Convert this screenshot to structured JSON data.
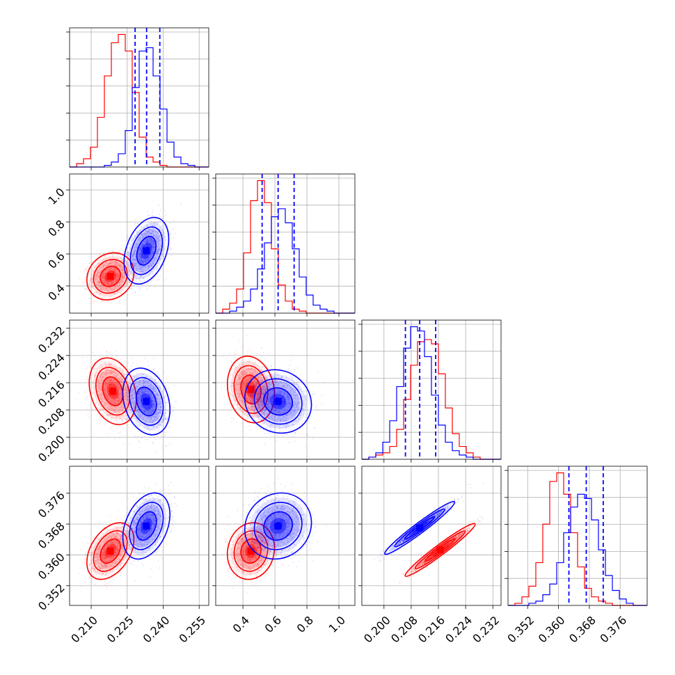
{
  "chart_data": {
    "type": "corner",
    "parameters": 4,
    "colors": {
      "red": "#ff0000",
      "blue": "#0000ff"
    },
    "grid": true,
    "quantile_lines": {
      "color": "#0000ff",
      "style": "dashed",
      "series": "blue"
    },
    "axes": [
      {
        "range": [
          0.201,
          0.259
        ],
        "ticks": [
          0.21,
          0.225,
          0.24,
          0.255
        ],
        "tick_labels": [
          "0.210",
          "0.225",
          "0.240",
          "0.255"
        ]
      },
      {
        "range": [
          0.23,
          1.1
        ],
        "ticks": [
          0.4,
          0.6,
          0.8,
          1.0
        ],
        "tick_labels": [
          "0.4",
          "0.6",
          "0.8",
          "1.0"
        ]
      },
      {
        "range": [
          0.1935,
          0.2344
        ],
        "ticks": [
          0.2,
          0.208,
          0.216,
          0.224,
          0.232
        ],
        "tick_labels": [
          "0.200",
          "0.208",
          "0.216",
          "0.224",
          "0.232"
        ]
      },
      {
        "range": [
          0.3469,
          0.383
        ],
        "ticks": [
          0.352,
          0.36,
          0.368,
          0.376
        ],
        "tick_labels": [
          "0.352",
          "0.360",
          "0.368",
          "0.376"
        ]
      }
    ],
    "marginals": [
      {
        "param": 0,
        "bins": [
          0.201,
          0.259
        ],
        "red": [
          0,
          2,
          5,
          12,
          30,
          55,
          75,
          80,
          70,
          45,
          18,
          6,
          3,
          1,
          0,
          0,
          0,
          0,
          0,
          0
        ],
        "blue": [
          0,
          0,
          0,
          0,
          0,
          1,
          3,
          8,
          22,
          48,
          70,
          72,
          55,
          35,
          15,
          6,
          2,
          1,
          0,
          0
        ],
        "quantiles": [
          0.2283,
          0.2331,
          0.2386
        ]
      },
      {
        "param": 1,
        "bins": [
          0.23,
          1.1
        ],
        "red": [
          0,
          2,
          5,
          12,
          30,
          56,
          66,
          55,
          32,
          14,
          6,
          2,
          1,
          0,
          0,
          0,
          0,
          0,
          0,
          0
        ],
        "blue": [
          0,
          0,
          1,
          3,
          6,
          12,
          22,
          35,
          48,
          52,
          45,
          32,
          18,
          9,
          4,
          2,
          1,
          0,
          0,
          0
        ],
        "quantiles": [
          0.52,
          0.62,
          0.72
        ]
      },
      {
        "param": 2,
        "bins": [
          0.1935,
          0.2344
        ],
        "red": [
          0,
          1,
          2,
          3,
          6,
          14,
          28,
          44,
          55,
          56,
          54,
          40,
          24,
          12,
          6,
          3,
          1,
          0,
          0,
          0
        ],
        "blue": [
          0,
          1,
          3,
          8,
          18,
          34,
          52,
          62,
          60,
          48,
          30,
          16,
          8,
          4,
          2,
          1,
          0,
          0,
          0,
          0
        ],
        "quantiles": [
          0.2063,
          0.2105,
          0.2152
        ]
      },
      {
        "param": 3,
        "bins": [
          0.3469,
          0.383
        ],
        "red": [
          0,
          1,
          4,
          9,
          20,
          38,
          58,
          62,
          52,
          34,
          18,
          8,
          4,
          2,
          1,
          0,
          0,
          0,
          0,
          0
        ],
        "blue": [
          0,
          0,
          0,
          1,
          2,
          5,
          10,
          20,
          34,
          46,
          52,
          50,
          40,
          26,
          14,
          7,
          3,
          1,
          0,
          0
        ],
        "quantiles": [
          0.3627,
          0.3672,
          0.3716
        ]
      }
    ],
    "pairs": [
      {
        "x": 0,
        "y": 1,
        "red": {
          "mean": [
            0.218,
            0.46
          ],
          "sd": [
            0.004,
            0.06
          ],
          "corr": 0.15,
          "count": 1400
        },
        "blue": {
          "mean": [
            0.233,
            0.62
          ],
          "sd": [
            0.0038,
            0.085
          ],
          "corr": 0.35,
          "count": 1400
        }
      },
      {
        "x": 0,
        "y": 2,
        "red": {
          "mean": [
            0.219,
            0.2135
          ],
          "sd": [
            0.004,
            0.004
          ],
          "corr": -0.25,
          "count": 1400
        },
        "blue": {
          "mean": [
            0.233,
            0.2105
          ],
          "sd": [
            0.004,
            0.004
          ],
          "corr": -0.25,
          "count": 1400
        }
      },
      {
        "x": 1,
        "y": 2,
        "red": {
          "mean": [
            0.45,
            0.214
          ],
          "sd": [
            0.06,
            0.004
          ],
          "corr": -0.15,
          "count": 1400
        },
        "blue": {
          "mean": [
            0.62,
            0.2105
          ],
          "sd": [
            0.085,
            0.0038
          ],
          "corr": -0.1,
          "count": 1400
        }
      },
      {
        "x": 0,
        "y": 3,
        "red": {
          "mean": [
            0.218,
            0.361
          ],
          "sd": [
            0.004,
            0.003
          ],
          "corr": 0.4,
          "count": 1400
        },
        "blue": {
          "mean": [
            0.233,
            0.3675
          ],
          "sd": [
            0.004,
            0.0035
          ],
          "corr": 0.35,
          "count": 1400
        }
      },
      {
        "x": 1,
        "y": 3,
        "red": {
          "mean": [
            0.45,
            0.361
          ],
          "sd": [
            0.06,
            0.003
          ],
          "corr": 0.1,
          "count": 1400
        },
        "blue": {
          "mean": [
            0.62,
            0.3675
          ],
          "sd": [
            0.085,
            0.0035
          ],
          "corr": 0.1,
          "count": 1400
        }
      },
      {
        "x": 2,
        "y": 3,
        "red": {
          "mean": [
            0.2165,
            0.3613
          ],
          "sd": [
            0.0042,
            0.0028
          ],
          "corr": 0.97,
          "count": 1400
        },
        "blue": {
          "mean": [
            0.2105,
            0.367
          ],
          "sd": [
            0.0042,
            0.0028
          ],
          "corr": 0.97,
          "count": 1400
        }
      }
    ]
  }
}
